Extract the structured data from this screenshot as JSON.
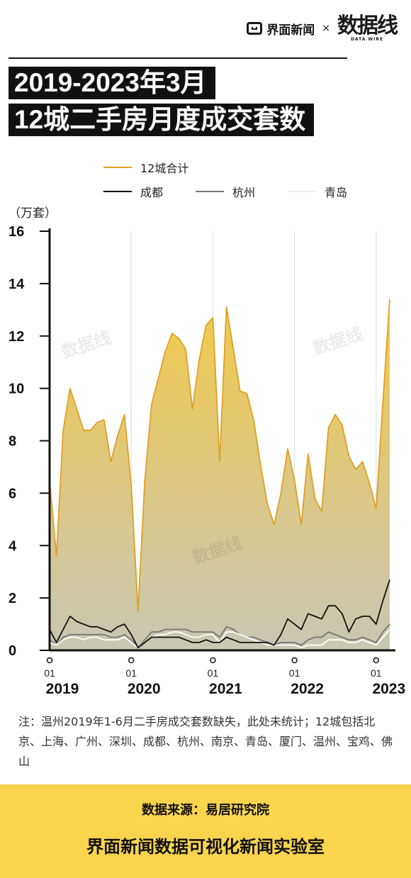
{
  "header": {
    "brand": "界面新闻",
    "times": "×",
    "dw_mark": "数据线",
    "dw_sub": "DATA WIRE"
  },
  "title": {
    "line1": "2019-2023年3月",
    "line2": "12城二手房月度成交套数"
  },
  "unit_label": "（万套）",
  "colors": {
    "total": "#e0a024",
    "chengdu": "#111111",
    "hangzhou": "#777777",
    "qingdao": "#ffffff",
    "fill_top": "#f2c94c",
    "fill_bottom": "#c9c7b4",
    "footer": "#fbd44e"
  },
  "chart_data": {
    "type": "area",
    "title": "2019-2023年3月 12城二手房月度成交套数",
    "ylabel": "（万套）",
    "ylim": [
      0,
      16
    ],
    "yticks": [
      "0",
      "2",
      "4",
      "6",
      "8",
      "10",
      "12",
      "14",
      "16"
    ],
    "x_start": "2019-01",
    "x_end": "2023-03",
    "x_tick_month_labels": [
      "01",
      "01",
      "01",
      "01",
      "01"
    ],
    "x_tick_year_labels": [
      "2019",
      "2020",
      "2021",
      "2022",
      "2023"
    ],
    "grid": "vertical lines at each January",
    "legend_position": "top",
    "series": [
      {
        "name": "12城合计",
        "values": [
          6.5,
          3.6,
          8.4,
          10.0,
          9.2,
          8.4,
          8.4,
          8.7,
          8.8,
          7.2,
          8.2,
          9.0,
          6.3,
          1.5,
          6.5,
          9.4,
          10.4,
          11.4,
          12.1,
          11.9,
          11.5,
          9.2,
          11.1,
          12.4,
          12.7,
          7.2,
          13.1,
          11.5,
          9.9,
          9.8,
          8.8,
          7.1,
          5.6,
          4.8,
          6.0,
          7.7,
          6.5,
          4.8,
          7.5,
          5.8,
          5.3,
          8.5,
          9.0,
          8.6,
          7.4,
          6.9,
          7.2,
          6.4,
          5.4,
          9.5,
          13.4
        ]
      },
      {
        "name": "成都",
        "values": [
          0.8,
          0.3,
          0.8,
          1.3,
          1.1,
          1.0,
          0.9,
          0.9,
          0.8,
          0.7,
          0.9,
          1.0,
          0.6,
          0.1,
          0.3,
          0.5,
          0.5,
          0.5,
          0.5,
          0.5,
          0.4,
          0.3,
          0.3,
          0.4,
          0.3,
          0.3,
          0.5,
          0.4,
          0.3,
          0.3,
          0.3,
          0.3,
          0.3,
          0.2,
          0.6,
          1.2,
          1.0,
          0.8,
          1.4,
          1.3,
          1.2,
          1.7,
          1.7,
          1.4,
          0.7,
          1.2,
          1.3,
          1.3,
          1.0,
          1.9,
          2.7
        ]
      },
      {
        "name": "杭州",
        "values": [
          0.4,
          0.2,
          0.5,
          0.6,
          0.6,
          0.6,
          0.6,
          0.6,
          0.6,
          0.5,
          0.5,
          0.6,
          0.4,
          0.1,
          0.4,
          0.7,
          0.7,
          0.8,
          0.8,
          0.8,
          0.8,
          0.7,
          0.7,
          0.7,
          0.7,
          0.5,
          0.9,
          0.8,
          0.6,
          0.5,
          0.5,
          0.4,
          0.3,
          0.2,
          0.3,
          0.3,
          0.3,
          0.2,
          0.4,
          0.5,
          0.5,
          0.7,
          0.6,
          0.5,
          0.4,
          0.4,
          0.5,
          0.4,
          0.3,
          0.7,
          1.0
        ]
      },
      {
        "name": "青岛",
        "values": [
          0.3,
          0.2,
          0.4,
          0.5,
          0.5,
          0.4,
          0.5,
          0.5,
          0.4,
          0.4,
          0.4,
          0.5,
          0.3,
          0.1,
          0.3,
          0.5,
          0.6,
          0.6,
          0.7,
          0.7,
          0.6,
          0.5,
          0.5,
          0.6,
          0.6,
          0.3,
          0.7,
          0.7,
          0.6,
          0.5,
          0.4,
          0.3,
          0.2,
          0.2,
          0.2,
          0.2,
          0.2,
          0.1,
          0.2,
          0.2,
          0.2,
          0.4,
          0.4,
          0.4,
          0.3,
          0.3,
          0.4,
          0.3,
          0.2,
          0.5,
          0.8
        ]
      }
    ]
  },
  "note": "注：温州2019年1-6月二手房成交套数缺失，此处未统计；12城包括北京、上海、广州、深圳、成都、杭州、南京、青岛、厦门、温州、宝鸡、佛山",
  "footer": {
    "source": "数据来源：易居研究院",
    "lab": "界面新闻数据可视化新闻实验室"
  },
  "watermark_text": "数据线"
}
